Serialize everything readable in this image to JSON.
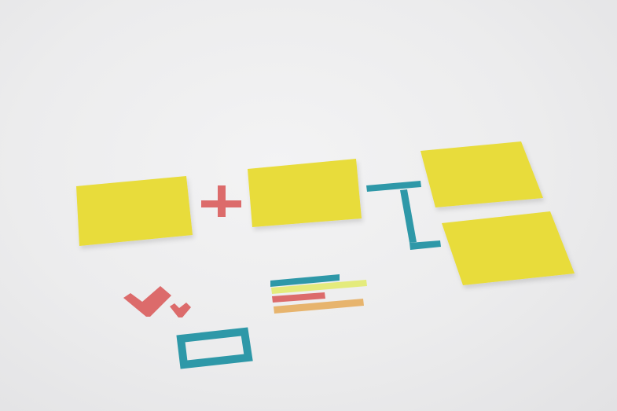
{
  "scene": {
    "background_color": "#ececed",
    "note_color": "#e8dc3a",
    "note_shadow_color": "#c9bf2c",
    "tape_colors": {
      "coral": "#dc6b6b",
      "teal": "#2e98a8",
      "lime": "#e4eb7c",
      "orange": "#e7b46d"
    },
    "sticky_notes_count": 4,
    "icons": [
      "plus-icon",
      "bracket-connector-icon",
      "checkmark-icon",
      "checkmark-small-icon",
      "checkbox-outline-icon",
      "text-lines-icon"
    ]
  }
}
